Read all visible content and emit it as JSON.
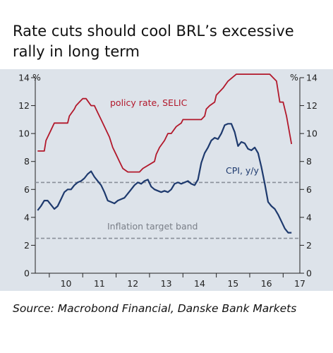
{
  "title": "Rate cuts should cool BRL’s excessive rally in long term",
  "source": "Source: Macrobond Financial, Danske Bank Markets",
  "colors": {
    "selic": "#b2182b",
    "cpi": "#1e3a6e",
    "target": "#8a9099",
    "axis": "#222222",
    "bg": "#dde3ea"
  },
  "chart_data": {
    "type": "line",
    "x_tick_labels": [
      "10",
      "11",
      "12",
      "13",
      "14",
      "15",
      "16",
      "17"
    ],
    "xlim": [
      2009.58,
      2017.5
    ],
    "ylim": [
      0,
      14
    ],
    "y_ticks": [
      0,
      2,
      4,
      6,
      8,
      10,
      12,
      14
    ],
    "y_unit_left": "%",
    "y_unit_right": "%",
    "grid": false,
    "series": [
      {
        "name": "policy rate, SELIC",
        "x": [
          2009.65,
          2009.85,
          2009.9,
          2010.05,
          2010.15,
          2010.2,
          2010.4,
          2010.55,
          2010.6,
          2010.75,
          2010.8,
          2010.9,
          2011.0,
          2011.1,
          2011.25,
          2011.35,
          2011.45,
          2011.55,
          2011.65,
          2011.8,
          2011.9,
          2012.0,
          2012.1,
          2012.2,
          2012.35,
          2012.5,
          2012.6,
          2012.7,
          2012.8,
          2013.15,
          2013.2,
          2013.3,
          2013.45,
          2013.55,
          2013.65,
          2013.8,
          2013.95,
          2014.0,
          2014.3,
          2014.4,
          2014.55,
          2014.65,
          2014.7,
          2014.8,
          2014.95,
          2015.0,
          2015.2,
          2015.35,
          2015.6,
          2016.6,
          2016.7,
          2016.8,
          2016.9,
          2017.0,
          2017.1,
          2017.25
        ],
        "values": [
          8.75,
          8.75,
          9.5,
          10.25,
          10.75,
          10.75,
          10.75,
          10.75,
          11.25,
          11.75,
          12.0,
          12.25,
          12.5,
          12.5,
          12.0,
          12.0,
          11.5,
          11.0,
          10.5,
          9.75,
          9.0,
          8.5,
          8.0,
          7.5,
          7.25,
          7.25,
          7.25,
          7.25,
          7.5,
          8.0,
          8.5,
          9.0,
          9.5,
          10.0,
          10.0,
          10.5,
          10.75,
          11.0,
          11.0,
          11.0,
          11.0,
          11.25,
          11.75,
          12.0,
          12.25,
          12.75,
          13.25,
          13.75,
          14.25,
          14.25,
          14.0,
          13.75,
          12.25,
          12.25,
          11.25,
          9.25
        ]
      },
      {
        "name": "CPI, y/y",
        "x": [
          2009.65,
          2009.75,
          2009.85,
          2009.95,
          2010.05,
          2010.15,
          2010.25,
          2010.35,
          2010.45,
          2010.55,
          2010.65,
          2010.75,
          2010.85,
          2010.95,
          2011.05,
          2011.15,
          2011.25,
          2011.35,
          2011.45,
          2011.55,
          2011.65,
          2011.75,
          2011.85,
          2011.95,
          2012.05,
          2012.15,
          2012.25,
          2012.35,
          2012.45,
          2012.55,
          2012.65,
          2012.75,
          2012.85,
          2012.95,
          2013.05,
          2013.15,
          2013.25,
          2013.35,
          2013.45,
          2013.55,
          2013.65,
          2013.75,
          2013.85,
          2013.95,
          2014.05,
          2014.15,
          2014.25,
          2014.35,
          2014.45,
          2014.55,
          2014.65,
          2014.75,
          2014.85,
          2014.95,
          2015.05,
          2015.15,
          2015.25,
          2015.35,
          2015.45,
          2015.55,
          2015.65,
          2015.75,
          2015.85,
          2015.95,
          2016.05,
          2016.15,
          2016.25,
          2016.35,
          2016.45,
          2016.55,
          2016.65,
          2016.75,
          2016.85,
          2016.95,
          2017.05,
          2017.15,
          2017.25
        ],
        "values": [
          4.5,
          4.8,
          5.2,
          5.2,
          4.9,
          4.6,
          4.8,
          5.3,
          5.8,
          6.0,
          6.0,
          6.3,
          6.5,
          6.6,
          6.8,
          7.1,
          7.3,
          6.9,
          6.6,
          6.3,
          5.8,
          5.2,
          5.1,
          5.0,
          5.2,
          5.3,
          5.4,
          5.7,
          6.0,
          6.3,
          6.5,
          6.4,
          6.6,
          6.7,
          6.2,
          6.0,
          5.9,
          5.8,
          5.9,
          5.8,
          6.0,
          6.4,
          6.5,
          6.4,
          6.5,
          6.6,
          6.4,
          6.3,
          6.7,
          7.9,
          8.6,
          9.0,
          9.5,
          9.7,
          9.6,
          10.0,
          10.6,
          10.7,
          10.7,
          10.1,
          9.1,
          9.4,
          9.3,
          8.9,
          8.8,
          9.0,
          8.6,
          7.6,
          6.4,
          5.1,
          4.8,
          4.6,
          4.2,
          3.7,
          3.2,
          2.9,
          2.9
        ]
      }
    ],
    "annotations": {
      "selic_label": "policy rate, SELIC",
      "cpi_label": "CPI, y/y",
      "target_label": "Inflation target band"
    },
    "target_band": [
      2.5,
      6.5
    ]
  }
}
